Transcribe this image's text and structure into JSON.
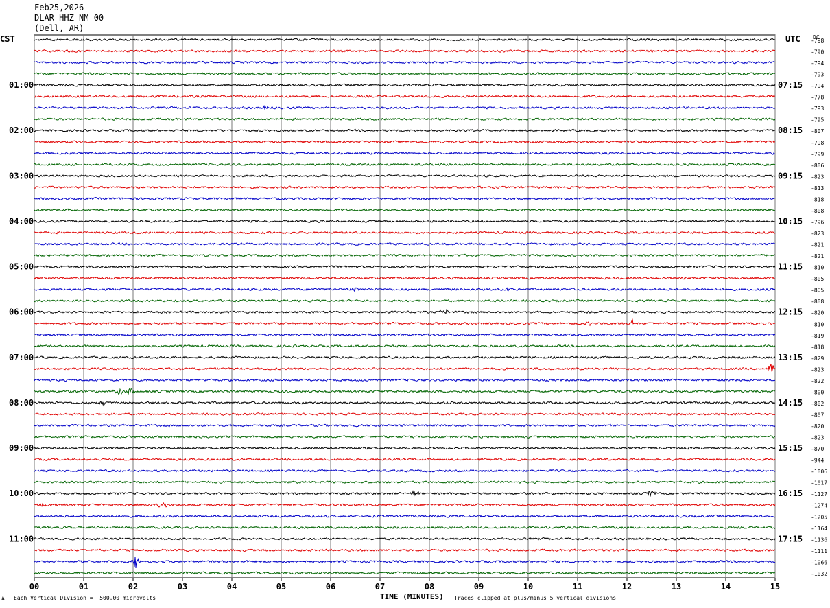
{
  "header": {
    "date": "Feb25,2026",
    "station": "DLAR HHZ NM 00",
    "location": "(Dell, AR)"
  },
  "chart_data": {
    "type": "line",
    "title": "",
    "xlabel": "TIME (MINUTES)",
    "ylabel": "",
    "xlim": [
      0,
      15
    ],
    "x_ticks": [
      "00",
      "01",
      "02",
      "03",
      "04",
      "05",
      "06",
      "07",
      "08",
      "09",
      "10",
      "11",
      "12",
      "13",
      "14",
      "15"
    ],
    "left_axis_label": "CST",
    "right_axis_label": "UTC",
    "dc_label": "DC",
    "left_hour_labels": [
      "01:00",
      "02:00",
      "03:00",
      "04:00",
      "05:00",
      "06:00",
      "07:00",
      "08:00",
      "09:00",
      "10:00",
      "11:00"
    ],
    "right_hour_labels": [
      "07:15",
      "08:15",
      "09:15",
      "10:15",
      "11:15",
      "12:15",
      "13:15",
      "14:15",
      "15:15",
      "16:15",
      "17:15"
    ],
    "trace_colors": [
      "#000000",
      "#e00000",
      "#0000c8",
      "#006400"
    ],
    "grid": true,
    "traces": [
      {
        "dc": "-798"
      },
      {
        "dc": "-790"
      },
      {
        "dc": "-794"
      },
      {
        "dc": "-793"
      },
      {
        "dc": "-794"
      },
      {
        "dc": "-778"
      },
      {
        "dc": "-793"
      },
      {
        "dc": "-795"
      },
      {
        "dc": "-807"
      },
      {
        "dc": "-798"
      },
      {
        "dc": "-799"
      },
      {
        "dc": "-806"
      },
      {
        "dc": "-823"
      },
      {
        "dc": "-813"
      },
      {
        "dc": "-818"
      },
      {
        "dc": "-808"
      },
      {
        "dc": "-796"
      },
      {
        "dc": "-823"
      },
      {
        "dc": "-821"
      },
      {
        "dc": "-821"
      },
      {
        "dc": "-810"
      },
      {
        "dc": "-805"
      },
      {
        "dc": "-805"
      },
      {
        "dc": "-808"
      },
      {
        "dc": "-820"
      },
      {
        "dc": "-810"
      },
      {
        "dc": "-819"
      },
      {
        "dc": "-818"
      },
      {
        "dc": "-829"
      },
      {
        "dc": "-823"
      },
      {
        "dc": "-822"
      },
      {
        "dc": "-800"
      },
      {
        "dc": "-802"
      },
      {
        "dc": "-807"
      },
      {
        "dc": "-820"
      },
      {
        "dc": "-823"
      },
      {
        "dc": "-870"
      },
      {
        "dc": "-944"
      },
      {
        "dc": "-1006"
      },
      {
        "dc": "-1017"
      },
      {
        "dc": "-1127"
      },
      {
        "dc": "-1274"
      },
      {
        "dc": "-1205"
      },
      {
        "dc": "-1164"
      },
      {
        "dc": "-1136"
      },
      {
        "dc": "-1111"
      },
      {
        "dc": "-1066"
      },
      {
        "dc": "-1032"
      }
    ],
    "events": [
      {
        "trace": 6,
        "minute": 4.7,
        "amp": 3
      },
      {
        "trace": 22,
        "minute": 6.5,
        "amp": 3
      },
      {
        "trace": 22,
        "minute": 9.6,
        "amp": 3
      },
      {
        "trace": 24,
        "minute": 8.3,
        "amp": 4
      },
      {
        "trace": 25,
        "minute": 11.2,
        "amp": 4
      },
      {
        "trace": 25,
        "minute": 12.1,
        "amp": 5
      },
      {
        "trace": 29,
        "minute": 14.9,
        "amp": 7
      },
      {
        "trace": 31,
        "minute": 1.7,
        "amp": 6
      },
      {
        "trace": 31,
        "minute": 1.95,
        "amp": 8
      },
      {
        "trace": 32,
        "minute": 1.4,
        "amp": 4
      },
      {
        "trace": 40,
        "minute": 7.7,
        "amp": 4
      },
      {
        "trace": 40,
        "minute": 12.5,
        "amp": 6
      },
      {
        "trace": 41,
        "minute": 0.2,
        "amp": 4
      },
      {
        "trace": 41,
        "minute": 2.6,
        "amp": 7
      },
      {
        "trace": 46,
        "minute": 2.05,
        "amp": 9
      }
    ]
  },
  "footer": {
    "scale_note": "Each Vertical Division =  500.00 microvolts",
    "clip_note": "Traces clipped at plus/minus 5 vertical divisions",
    "corner_mark": "A"
  }
}
